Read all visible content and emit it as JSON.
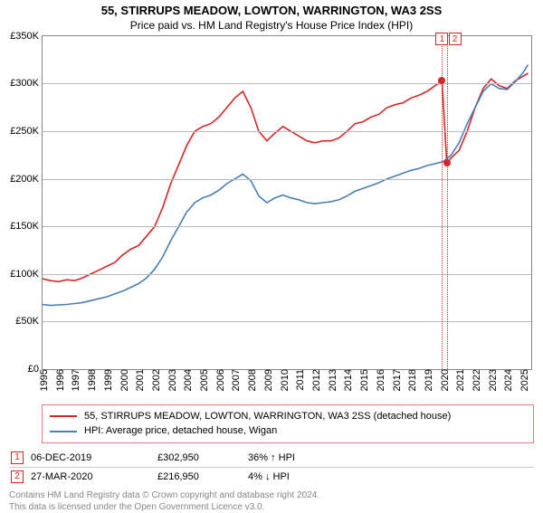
{
  "title": "55, STIRRUPS MEADOW, LOWTON, WARRINGTON, WA3 2SS",
  "subtitle": "Price paid vs. HM Land Registry's House Price Index (HPI)",
  "chart": {
    "type": "line",
    "background_color": "#ffffff",
    "grid_color": "#bbbbbb",
    "axis_color": "#888888",
    "font_family": "Arial",
    "title_fontsize": 13,
    "label_fontsize": 11,
    "x_range": [
      1995,
      2025.5
    ],
    "y_range": [
      0,
      350000
    ],
    "y_ticks": [
      0,
      50000,
      100000,
      150000,
      200000,
      250000,
      300000,
      350000
    ],
    "y_tick_labels": [
      "£0",
      "£50K",
      "£100K",
      "£150K",
      "£200K",
      "£250K",
      "£300K",
      "£350K"
    ],
    "x_ticks": [
      1995,
      1996,
      1997,
      1998,
      1999,
      2000,
      2001,
      2002,
      2003,
      2004,
      2005,
      2006,
      2007,
      2008,
      2009,
      2010,
      2011,
      2012,
      2013,
      2014,
      2015,
      2016,
      2017,
      2018,
      2019,
      2020,
      2021,
      2022,
      2023,
      2024,
      2025
    ],
    "series": [
      {
        "name": "55, STIRRUPS MEADOW, LOWTON, WARRINGTON, WA3 2SS (detached house)",
        "color": "#d62728",
        "line_width": 1.6,
        "data": [
          [
            1995,
            95000
          ],
          [
            1995.5,
            93000
          ],
          [
            1996,
            92000
          ],
          [
            1996.5,
            94000
          ],
          [
            1997,
            93000
          ],
          [
            1997.5,
            96000
          ],
          [
            1998,
            100000
          ],
          [
            1998.5,
            104000
          ],
          [
            1999,
            108000
          ],
          [
            1999.5,
            112000
          ],
          [
            2000,
            120000
          ],
          [
            2000.5,
            126000
          ],
          [
            2001,
            130000
          ],
          [
            2001.5,
            140000
          ],
          [
            2002,
            150000
          ],
          [
            2002.5,
            170000
          ],
          [
            2003,
            195000
          ],
          [
            2003.5,
            215000
          ],
          [
            2004,
            235000
          ],
          [
            2004.5,
            250000
          ],
          [
            2005,
            255000
          ],
          [
            2005.5,
            258000
          ],
          [
            2006,
            265000
          ],
          [
            2006.5,
            275000
          ],
          [
            2007,
            285000
          ],
          [
            2007.5,
            292000
          ],
          [
            2008,
            275000
          ],
          [
            2008.5,
            250000
          ],
          [
            2009,
            240000
          ],
          [
            2009.5,
            248000
          ],
          [
            2010,
            255000
          ],
          [
            2010.5,
            250000
          ],
          [
            2011,
            245000
          ],
          [
            2011.5,
            240000
          ],
          [
            2012,
            238000
          ],
          [
            2012.5,
            240000
          ],
          [
            2013,
            240000
          ],
          [
            2013.5,
            243000
          ],
          [
            2014,
            250000
          ],
          [
            2014.5,
            258000
          ],
          [
            2015,
            260000
          ],
          [
            2015.5,
            265000
          ],
          [
            2016,
            268000
          ],
          [
            2016.5,
            275000
          ],
          [
            2017,
            278000
          ],
          [
            2017.5,
            280000
          ],
          [
            2018,
            285000
          ],
          [
            2018.5,
            288000
          ],
          [
            2019,
            292000
          ],
          [
            2019.5,
            298000
          ],
          [
            2019.93,
            302950
          ],
          [
            2020.23,
            216950
          ],
          [
            2020.5,
            222000
          ],
          [
            2021,
            230000
          ],
          [
            2021.5,
            250000
          ],
          [
            2022,
            275000
          ],
          [
            2022.5,
            295000
          ],
          [
            2023,
            305000
          ],
          [
            2023.5,
            298000
          ],
          [
            2024,
            295000
          ],
          [
            2024.5,
            303000
          ],
          [
            2025,
            308000
          ],
          [
            2025.3,
            311000
          ]
        ]
      },
      {
        "name": "HPI: Average price, detached house, Wigan",
        "color": "#4a7ebb",
        "line_width": 1.6,
        "data": [
          [
            1995,
            68000
          ],
          [
            1995.5,
            67000
          ],
          [
            1996,
            67500
          ],
          [
            1996.5,
            68000
          ],
          [
            1997,
            69000
          ],
          [
            1997.5,
            70000
          ],
          [
            1998,
            72000
          ],
          [
            1998.5,
            74000
          ],
          [
            1999,
            76000
          ],
          [
            1999.5,
            79000
          ],
          [
            2000,
            82000
          ],
          [
            2000.5,
            86000
          ],
          [
            2001,
            90000
          ],
          [
            2001.5,
            96000
          ],
          [
            2002,
            105000
          ],
          [
            2002.5,
            118000
          ],
          [
            2003,
            135000
          ],
          [
            2003.5,
            150000
          ],
          [
            2004,
            165000
          ],
          [
            2004.5,
            175000
          ],
          [
            2005,
            180000
          ],
          [
            2005.5,
            183000
          ],
          [
            2006,
            188000
          ],
          [
            2006.5,
            195000
          ],
          [
            2007,
            200000
          ],
          [
            2007.5,
            205000
          ],
          [
            2008,
            198000
          ],
          [
            2008.5,
            182000
          ],
          [
            2009,
            175000
          ],
          [
            2009.5,
            180000
          ],
          [
            2010,
            183000
          ],
          [
            2010.5,
            180000
          ],
          [
            2011,
            178000
          ],
          [
            2011.5,
            175000
          ],
          [
            2012,
            174000
          ],
          [
            2012.5,
            175000
          ],
          [
            2013,
            176000
          ],
          [
            2013.5,
            178000
          ],
          [
            2014,
            182000
          ],
          [
            2014.5,
            187000
          ],
          [
            2015,
            190000
          ],
          [
            2015.5,
            193000
          ],
          [
            2016,
            196000
          ],
          [
            2016.5,
            200000
          ],
          [
            2017,
            203000
          ],
          [
            2017.5,
            206000
          ],
          [
            2018,
            209000
          ],
          [
            2018.5,
            211000
          ],
          [
            2019,
            214000
          ],
          [
            2019.5,
            216000
          ],
          [
            2020,
            218000
          ],
          [
            2020.5,
            225000
          ],
          [
            2021,
            238000
          ],
          [
            2021.5,
            258000
          ],
          [
            2022,
            275000
          ],
          [
            2022.5,
            292000
          ],
          [
            2023,
            300000
          ],
          [
            2023.5,
            295000
          ],
          [
            2024,
            294000
          ],
          [
            2024.5,
            302000
          ],
          [
            2025,
            312000
          ],
          [
            2025.3,
            320000
          ]
        ]
      }
    ],
    "markers": [
      {
        "n": 1,
        "x": 2019.93,
        "y": 302950,
        "color": "#d62728",
        "callout_y": 347000
      },
      {
        "n": 2,
        "x": 2020.23,
        "y": 216950,
        "color": "#d62728",
        "callout_dx": 0.5,
        "callout_y": 347000
      }
    ]
  },
  "legend": {
    "border_color": "#e08080",
    "rows": [
      {
        "color": "#d62728",
        "label": "55, STIRRUPS MEADOW, LOWTON, WARRINGTON, WA3 2SS (detached house)"
      },
      {
        "color": "#4a7ebb",
        "label": "HPI: Average price, detached house, Wigan"
      }
    ]
  },
  "table": {
    "rows": [
      {
        "n": "1",
        "color": "#d62728",
        "date": "06-DEC-2019",
        "price": "£302,950",
        "hpi": "36%  ↑  HPI"
      },
      {
        "n": "2",
        "color": "#d62728",
        "date": "27-MAR-2020",
        "price": "£216,950",
        "hpi": "4%  ↓  HPI"
      }
    ]
  },
  "footer": {
    "line1": "Contains HM Land Registry data © Crown copyright and database right 2024.",
    "line2": "This data is licensed under the Open Government Licence v3.0."
  }
}
